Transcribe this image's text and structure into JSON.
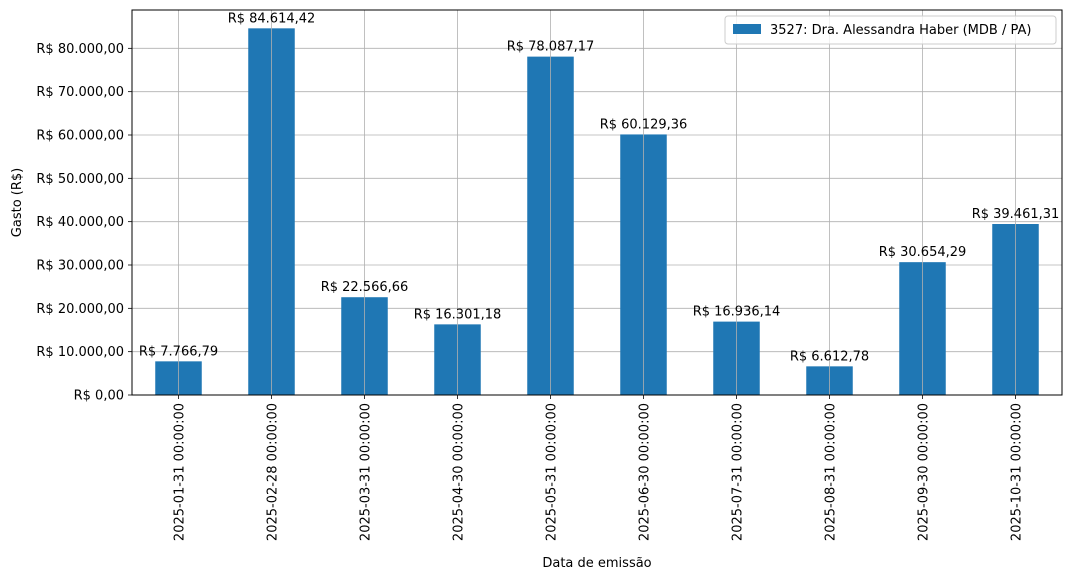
{
  "chart_data": {
    "type": "bar",
    "title": "",
    "xlabel": "Data de emissão",
    "ylabel": "Gasto (R$)",
    "categories": [
      "2025-01-31 00:00:00",
      "2025-02-28 00:00:00",
      "2025-03-31 00:00:00",
      "2025-04-30 00:00:00",
      "2025-05-31 00:00:00",
      "2025-06-30 00:00:00",
      "2025-07-31 00:00:00",
      "2025-08-31 00:00:00",
      "2025-09-30 00:00:00",
      "2025-10-31 00:00:00"
    ],
    "series": [
      {
        "name": "3527: Dra. Alessandra Haber (MDB / PA)",
        "color": "#1f77b4",
        "values": [
          7766.79,
          84614.42,
          22566.66,
          16301.18,
          78087.17,
          60129.36,
          16936.14,
          6612.78,
          30654.29,
          39461.31
        ],
        "labels": [
          "R$ 7.766,79",
          "R$ 84.614,42",
          "R$ 22.566,66",
          "R$ 16.301,18",
          "R$ 78.087,17",
          "R$ 60.129,36",
          "R$ 16.936,14",
          "R$ 6.612,78",
          "R$ 30.654,29",
          "R$ 39.461,31"
        ]
      }
    ],
    "ylim": [
      0,
      88845.64
    ],
    "yticks": [
      0,
      10000,
      20000,
      30000,
      40000,
      50000,
      60000,
      70000,
      80000
    ],
    "ytick_labels": [
      "R$ 0,00",
      "R$ 10.000,00",
      "R$ 20.000,00",
      "R$ 30.000,00",
      "R$ 40.000,00",
      "R$ 50.000,00",
      "R$ 60.000,00",
      "R$ 70.000,00",
      "R$ 80.000,00"
    ],
    "grid": true,
    "legend_position": "top-right"
  }
}
